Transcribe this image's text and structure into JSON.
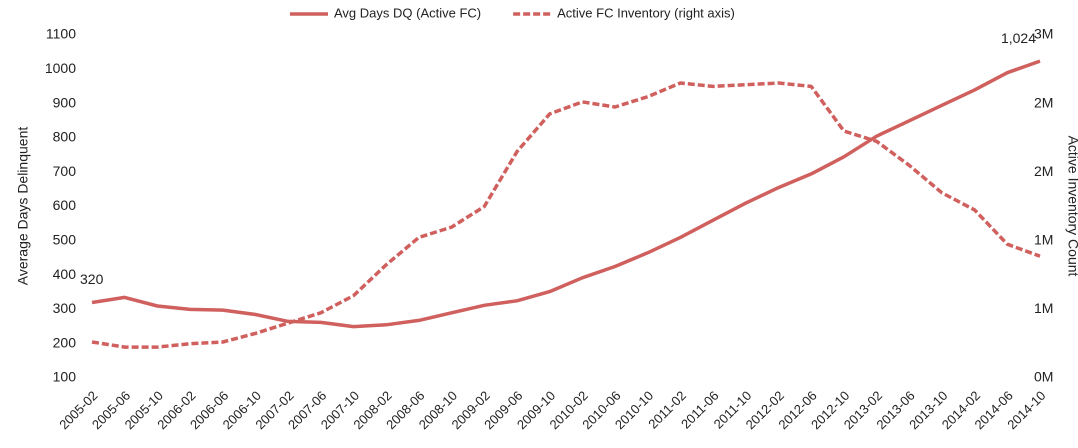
{
  "chart_data": {
    "type": "line",
    "y_label": "Average Days Delinquent",
    "y2_label": "Active Inventory Count",
    "categories": [
      "2005-02",
      "2005-06",
      "2005-10",
      "2006-02",
      "2006-06",
      "2006-10",
      "2007-02",
      "2007-06",
      "2007-10",
      "2008-02",
      "2008-06",
      "2008-10",
      "2009-02",
      "2009-06",
      "2009-10",
      "2010-02",
      "2010-06",
      "2010-10",
      "2011-02",
      "2011-06",
      "2011-10",
      "2012-02",
      "2012-06",
      "2012-10",
      "2013-02",
      "2013-06",
      "2013-10",
      "2014-02",
      "2014-06",
      "2014-10"
    ],
    "series": [
      {
        "name": "Avg Days DQ (Active FC)",
        "color": "#d0605e",
        "dash": false,
        "axis": "y",
        "values": [
          320,
          335,
          310,
          300,
          298,
          285,
          265,
          262,
          250,
          255,
          268,
          290,
          312,
          325,
          352,
          392,
          425,
          465,
          510,
          560,
          610,
          655,
          695,
          745,
          805,
          850,
          895,
          940,
          990,
          1024
        ]
      },
      {
        "name": "Active FC Inventory (right axis)",
        "color": "#d0605e",
        "dash": true,
        "axis": "y2",
        "values": [
          315000,
          270000,
          270000,
          300000,
          315000,
          390000,
          480000,
          570000,
          720000,
          990000,
          1230000,
          1320000,
          1500000,
          1980000,
          2310000,
          2415000,
          2370000,
          2460000,
          2580000,
          2550000,
          2565000,
          2580000,
          2550000,
          2160000,
          2070000,
          1860000,
          1620000,
          1470000,
          1170000,
          1065000
        ]
      }
    ],
    "annotations": [
      {
        "text": "320",
        "series": 0,
        "index": 0
      },
      {
        "text": "1,024",
        "series": 0,
        "index": 29
      }
    ],
    "ylim": [
      100,
      1100
    ],
    "yticks": [
      100,
      200,
      300,
      400,
      500,
      600,
      700,
      800,
      900,
      1000,
      1100
    ],
    "y2lim": [
      0,
      3000000
    ],
    "y2ticks": [
      {
        "value": 0,
        "label": "0M"
      },
      {
        "value": 600000,
        "label": "1M"
      },
      {
        "value": 1200000,
        "label": "1M"
      },
      {
        "value": 1800000,
        "label": "2M"
      },
      {
        "value": 2400000,
        "label": "2M"
      },
      {
        "value": 3000000,
        "label": "3M"
      }
    ],
    "grid": false,
    "legend": "top"
  }
}
